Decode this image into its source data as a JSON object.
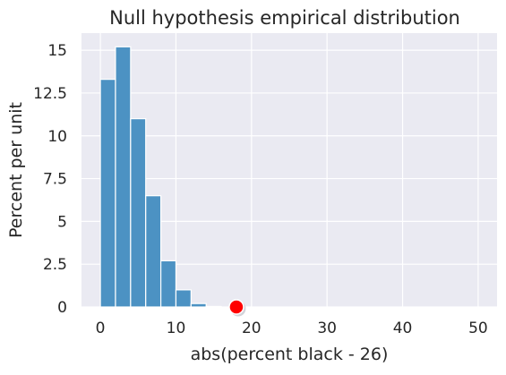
{
  "chart_data": {
    "type": "bar",
    "title": "Null hypothesis empirical distribution",
    "xlabel": "abs(percent black - 26)",
    "ylabel": "Percent per unit",
    "xlim": [
      -2.5,
      52.5
    ],
    "ylim": [
      0,
      16
    ],
    "x_ticks": [
      0,
      10,
      20,
      30,
      40,
      50
    ],
    "x_tick_labels": [
      "0",
      "10",
      "20",
      "30",
      "40",
      "50"
    ],
    "y_ticks": [
      0,
      2.5,
      5,
      7.5,
      10,
      12.5,
      15
    ],
    "y_tick_labels": [
      "0",
      "2.5",
      "5",
      "7.5",
      "10",
      "12.5",
      "15"
    ],
    "grid": true,
    "bin_width": 2,
    "bins": [
      {
        "start": 0,
        "end": 2,
        "value": 13.3
      },
      {
        "start": 2,
        "end": 4,
        "value": 15.2
      },
      {
        "start": 4,
        "end": 6,
        "value": 11.0
      },
      {
        "start": 6,
        "end": 8,
        "value": 6.5
      },
      {
        "start": 8,
        "end": 10,
        "value": 2.7
      },
      {
        "start": 10,
        "end": 12,
        "value": 1.0
      },
      {
        "start": 12,
        "end": 14,
        "value": 0.2
      },
      {
        "start": 14,
        "end": 16,
        "value": 0.03
      }
    ],
    "observed_point": {
      "x": 18,
      "y": 0,
      "color": "#ff0000"
    },
    "colors": {
      "bar": "#4c92c3",
      "background": "#eaeaf2",
      "grid": "#ffffff"
    }
  }
}
